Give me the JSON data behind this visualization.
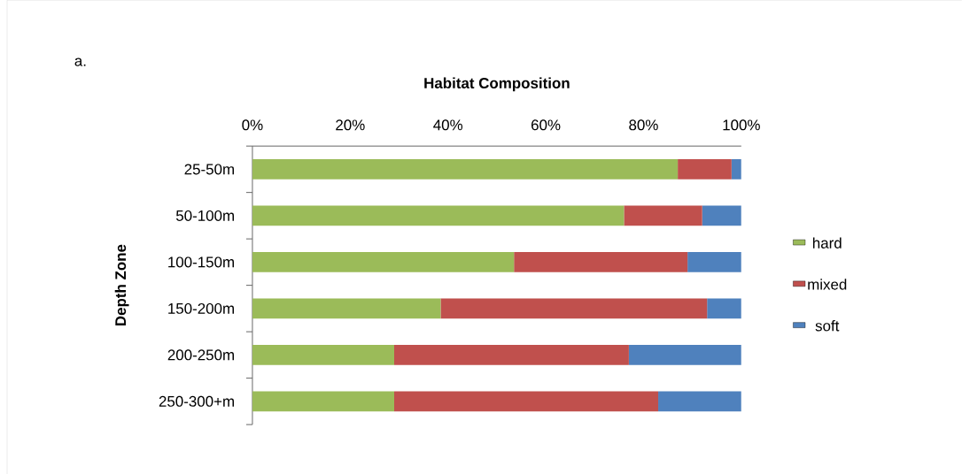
{
  "chart_data": {
    "type": "bar",
    "orientation": "horizontal",
    "stacked": true,
    "title": "Habitat Composition",
    "ylabel": "Depth Zone",
    "annotations": [
      "a."
    ],
    "categories": [
      "25-50m",
      "50-100m",
      "100-150m",
      "150-200m",
      "200-250m",
      "250-300+m"
    ],
    "series": [
      {
        "name": "hard",
        "color": "#9bbb59",
        "values": [
          87,
          76,
          53.5,
          38.5,
          29,
          29
        ]
      },
      {
        "name": "mixed",
        "color": "#c0504d",
        "values": [
          11,
          16,
          35.5,
          54.5,
          48,
          54
        ]
      },
      {
        "name": "soft",
        "color": "#4f81bd",
        "values": [
          2,
          8,
          11,
          7,
          23,
          17
        ]
      }
    ],
    "xlim": [
      0,
      100
    ],
    "xticks": [
      {
        "value": 0,
        "label": "0%"
      },
      {
        "value": 20,
        "label": "20%"
      },
      {
        "value": 40,
        "label": "40%"
      },
      {
        "value": 60,
        "label": "60%"
      },
      {
        "value": 80,
        "label": "80%"
      },
      {
        "value": 100,
        "label": "100%"
      }
    ],
    "grid": false,
    "legend": "right"
  }
}
